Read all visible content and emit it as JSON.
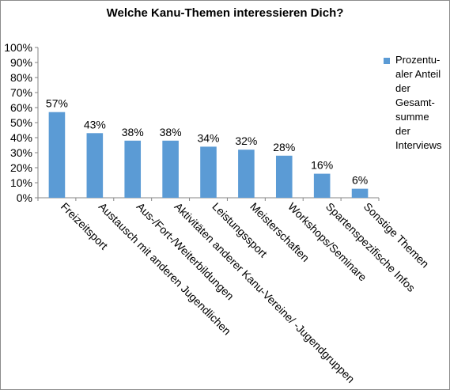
{
  "chart_data": {
    "type": "bar",
    "title": "Welche Kanu-Themen  interessieren Dich?",
    "categories": [
      "Freizeitsport",
      "Austausch mit anderen Jugendlichen",
      "Aus-/Fort-/Weiterbildungen",
      "Aktivitäten anderer Kanu-Vereine/ -Jugendgruppen",
      "Leistungssport",
      "Meisterschaften",
      "Workshops/Seminare",
      "Spartenspezifische Infos",
      "Sonstige Themen"
    ],
    "series": [
      {
        "name": "Prozentu-\naler Anteil\nder\nGesamt-\nsumme\nder\nInterviews",
        "values": [
          57,
          43,
          38,
          38,
          34,
          32,
          28,
          16,
          6
        ],
        "labels": [
          "57%",
          "43%",
          "38%",
          "38%",
          "34%",
          "32%",
          "28%",
          "16%",
          "6%"
        ]
      }
    ],
    "yticks": [
      "0%",
      "10%",
      "20%",
      "30%",
      "40%",
      "50%",
      "60%",
      "70%",
      "80%",
      "90%",
      "100%"
    ],
    "ylim": [
      0,
      100
    ],
    "xlabel": "",
    "ylabel": "",
    "grid": false,
    "legend": "right",
    "bar_color": "#5b9bd5"
  }
}
